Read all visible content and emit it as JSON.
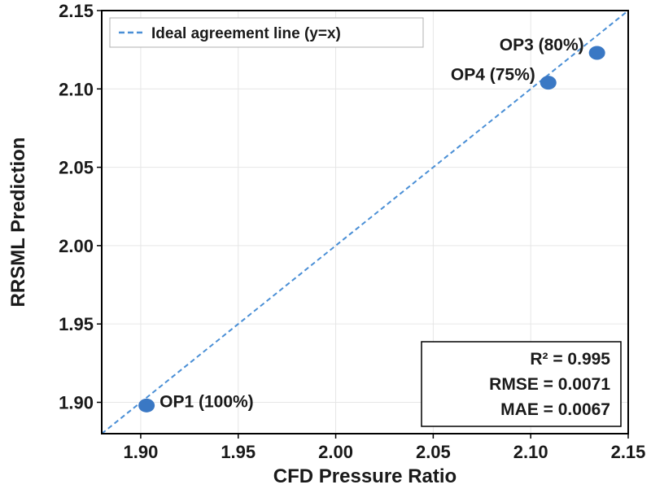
{
  "chart_data": {
    "type": "scatter",
    "xlabel": "CFD Pressure Ratio",
    "ylabel": "RRSML Prediction",
    "xlim": [
      1.88,
      2.15
    ],
    "ylim": [
      1.88,
      2.15
    ],
    "x_ticks": [
      "1.90",
      "1.95",
      "2.00",
      "2.05",
      "2.10",
      "2.15"
    ],
    "y_ticks": [
      "1.90",
      "1.95",
      "2.00",
      "2.05",
      "2.10",
      "2.15"
    ],
    "grid": true,
    "legend_position": "top-left",
    "legend": {
      "label": "Ideal agreement line (y=x)"
    },
    "points": [
      {
        "label": "OP1 (100%)",
        "x": 1.903,
        "y": 1.898
      },
      {
        "label": "OP4 (75%)",
        "x": 2.109,
        "y": 2.104
      },
      {
        "label": "OP3 (80%)",
        "x": 2.134,
        "y": 2.123
      }
    ],
    "ideal_line": {
      "from": [
        1.88,
        1.88
      ],
      "to": [
        2.15,
        2.15
      ]
    },
    "stats": {
      "r2": "R² = 0.995",
      "rmse": "RMSE = 0.0071",
      "mae": "MAE = 0.0067"
    },
    "colors": {
      "point": "#3a78c4",
      "ideal_line": "#4a8fd6",
      "grid": "#e6e6e6",
      "axis": "#000000"
    }
  }
}
